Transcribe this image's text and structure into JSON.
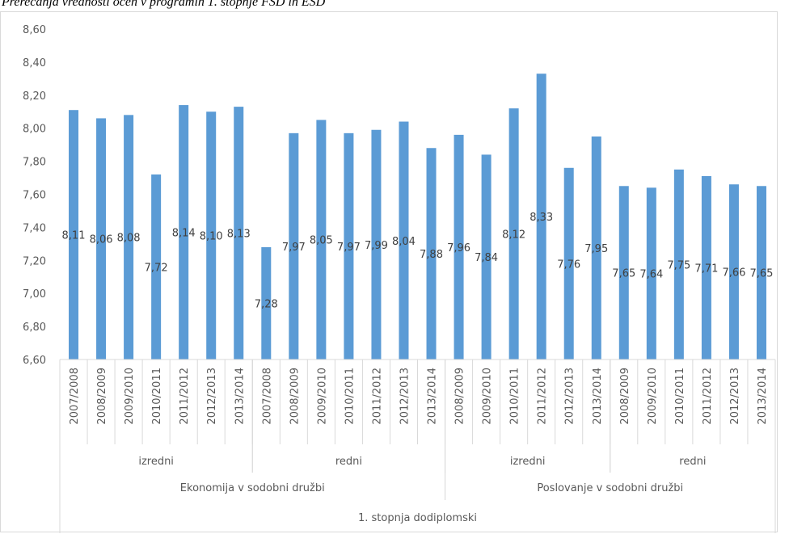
{
  "caption": "Prerečanja vrednosti ocen v programih 1. stopnje FSD in ESD",
  "chart_data": {
    "type": "bar",
    "ylim": [
      6.6,
      8.6
    ],
    "ytick_step": 0.2,
    "yticks": [
      "6,60",
      "6,80",
      "7,00",
      "7,20",
      "7,40",
      "7,60",
      "7,80",
      "8,00",
      "8,20",
      "8,40",
      "8,60"
    ],
    "bar_color": "#5b9bd5",
    "grid": false,
    "legend": "none",
    "title": "",
    "xlabel": "",
    "ylabel": "",
    "categories": [
      "2007/2008",
      "2008/2009",
      "2009/2010",
      "2010/2011",
      "2011/2012",
      "2012/2013",
      "2013/2014",
      "2007/2008",
      "2008/2009",
      "2009/2010",
      "2010/2011",
      "2011/2012",
      "2012/2013",
      "2013/2014",
      "2008/2009",
      "2009/2010",
      "2010/2011",
      "2011/2012",
      "2012/2013",
      "2013/2014",
      "2008/2009",
      "2009/2010",
      "2010/2011",
      "2011/2012",
      "2012/2013",
      "2013/2014"
    ],
    "values": [
      8.11,
      8.06,
      8.08,
      7.72,
      8.14,
      8.1,
      8.13,
      7.28,
      7.97,
      8.05,
      7.97,
      7.99,
      8.04,
      7.88,
      7.96,
      7.84,
      8.12,
      8.33,
      7.76,
      7.95,
      7.65,
      7.64,
      7.75,
      7.71,
      7.66,
      7.65
    ],
    "data_labels": [
      "8,11",
      "8,06",
      "8,08",
      "7,72",
      "8,14",
      "8,10",
      "8,13",
      "7,28",
      "7,97",
      "8,05",
      "7,97",
      "7,99",
      "8,04",
      "7,88",
      "7,96",
      "7,84",
      "8,12",
      "8,33",
      "7,76",
      "7,95",
      "7,65",
      "7,64",
      "7,75",
      "7,71",
      "7,66",
      "7,65"
    ],
    "group_level_1": [
      {
        "label": "izredni",
        "count": 7
      },
      {
        "label": "redni",
        "count": 7
      },
      {
        "label": "izredni",
        "count": 6
      },
      {
        "label": "redni",
        "count": 6
      }
    ],
    "group_level_2": [
      {
        "label": "Ekonomija v sodobni družbi",
        "count": 14
      },
      {
        "label": "Poslovanje v sodobni družbi",
        "count": 12
      }
    ],
    "group_level_3": [
      {
        "label": "1. stopnja dodiplomski",
        "count": 26
      }
    ]
  }
}
